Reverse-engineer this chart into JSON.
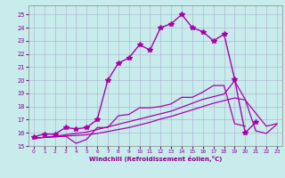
{
  "title": "",
  "xlabel": "Windchill (Refroidissement éolien,°C)",
  "bg_color": "#c8ecec",
  "grid_color": "#aaaacc",
  "line_color": "#aa00aa",
  "xlim": [
    -0.5,
    23.5
  ],
  "ylim": [
    15.0,
    25.7
  ],
  "yticks": [
    15,
    16,
    17,
    18,
    19,
    20,
    21,
    22,
    23,
    24,
    25
  ],
  "xticks": [
    0,
    1,
    2,
    3,
    4,
    5,
    6,
    7,
    8,
    9,
    10,
    11,
    12,
    13,
    14,
    15,
    16,
    17,
    18,
    19,
    20,
    21,
    22,
    23
  ],
  "series": [
    {
      "x": [
        0,
        1,
        2,
        3,
        4,
        5,
        6,
        7,
        8,
        9,
        10,
        11,
        12,
        13,
        14,
        15,
        16,
        17,
        18,
        19,
        20,
        21
      ],
      "y": [
        15.7,
        15.9,
        15.9,
        16.4,
        16.3,
        16.4,
        17.0,
        20.0,
        21.3,
        21.7,
        22.7,
        22.3,
        24.0,
        24.3,
        25.0,
        24.0,
        23.7,
        23.0,
        23.5,
        20.1,
        16.0,
        16.8
      ],
      "marker": "*",
      "markersize": 4,
      "linewidth": 1.0
    },
    {
      "x": [
        0,
        1,
        2,
        3,
        4,
        5,
        6,
        7,
        8,
        9,
        10,
        11,
        12,
        13,
        14,
        15,
        16,
        17,
        18,
        19,
        20,
        21,
        22,
        23
      ],
      "y": [
        15.6,
        15.65,
        15.7,
        15.75,
        15.8,
        15.85,
        15.95,
        16.1,
        16.25,
        16.4,
        16.6,
        16.8,
        17.05,
        17.25,
        17.5,
        17.75,
        18.0,
        18.25,
        18.45,
        18.65,
        18.5,
        17.5,
        16.5,
        16.7
      ],
      "marker": null,
      "markersize": 0,
      "linewidth": 0.9
    },
    {
      "x": [
        0,
        1,
        2,
        3,
        4,
        5,
        6,
        7,
        8,
        9,
        10,
        11,
        12,
        13,
        14,
        15,
        16,
        17,
        18,
        19,
        20,
        21,
        22,
        23
      ],
      "y": [
        15.6,
        15.65,
        15.75,
        15.85,
        15.95,
        16.05,
        16.25,
        16.45,
        16.65,
        16.85,
        17.05,
        17.25,
        17.45,
        17.65,
        17.95,
        18.25,
        18.55,
        18.75,
        18.95,
        19.95,
        18.55,
        16.15,
        15.95,
        16.65
      ],
      "marker": null,
      "markersize": 0,
      "linewidth": 0.9
    },
    {
      "x": [
        0,
        1,
        2,
        3,
        4,
        5,
        6,
        7,
        8,
        9,
        10,
        11,
        12,
        13,
        14,
        15,
        16,
        17,
        18,
        19,
        20
      ],
      "y": [
        15.6,
        15.65,
        15.7,
        15.75,
        15.2,
        15.5,
        16.4,
        16.4,
        17.3,
        17.4,
        17.9,
        17.9,
        18.0,
        18.2,
        18.7,
        18.7,
        19.1,
        19.6,
        19.6,
        16.7,
        16.5
      ],
      "marker": null,
      "markersize": 0,
      "linewidth": 0.9
    }
  ]
}
